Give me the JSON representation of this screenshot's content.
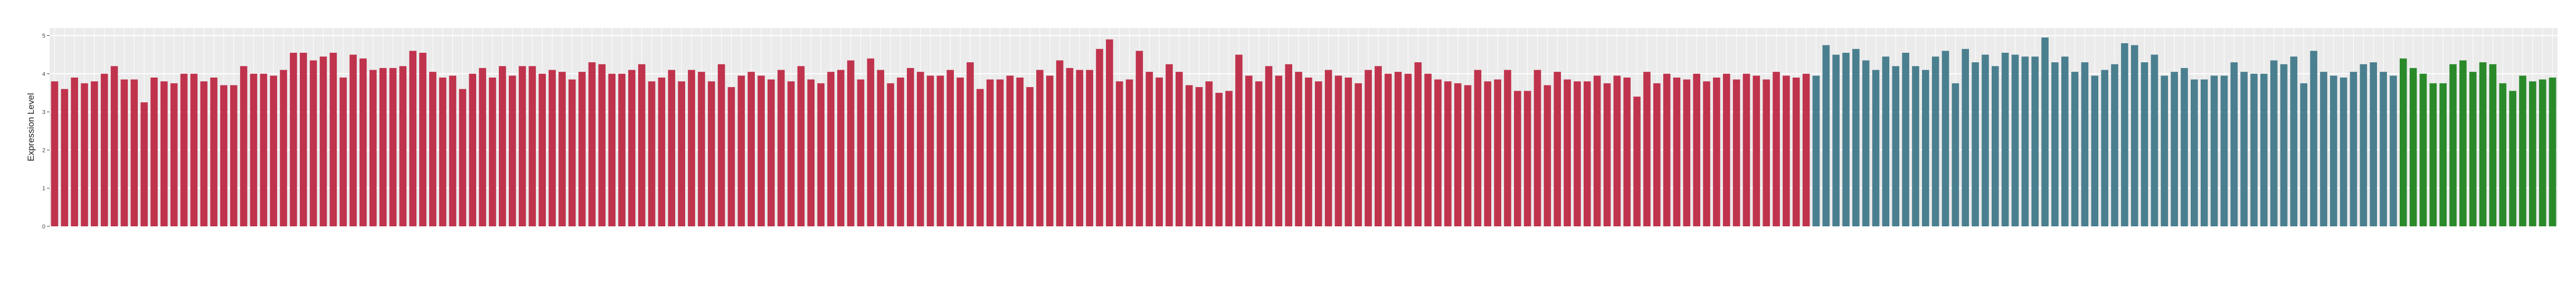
{
  "chart_data": {
    "type": "bar",
    "y_label": "Expression Level",
    "ylim": [
      0,
      5.2
    ],
    "yticks": [
      0,
      1,
      2,
      3,
      4,
      5
    ],
    "grid": true,
    "series": [
      {
        "color": "#c0334d",
        "values": [
          3.8,
          3.6,
          3.9,
          3.75,
          3.8,
          4.0,
          4.2,
          3.85,
          3.85,
          3.25,
          3.9,
          3.8,
          3.75,
          4.0,
          4.0,
          3.8,
          3.9,
          3.7,
          3.7,
          4.2,
          4.0,
          4.0,
          3.95,
          4.1,
          4.55,
          4.55,
          4.35,
          4.45,
          4.55,
          3.9,
          4.5,
          4.4,
          4.1,
          4.15,
          4.15,
          4.2,
          4.6,
          4.55,
          4.05,
          3.9,
          3.95,
          3.6,
          4.0,
          4.15,
          3.9,
          4.2,
          3.95,
          4.2,
          4.2,
          4.0,
          4.1,
          4.05,
          3.85,
          4.05,
          4.3,
          4.25,
          4.0,
          4.0,
          4.1,
          4.25,
          3.8,
          3.9,
          4.1,
          3.8,
          4.1,
          4.05,
          3.8,
          4.25,
          3.65,
          3.95,
          4.05,
          3.95,
          3.85,
          4.1,
          3.8,
          4.2,
          3.85,
          3.75,
          4.05,
          4.1,
          4.35,
          3.85,
          4.4,
          4.1,
          3.75,
          3.9,
          4.15,
          4.05,
          3.95,
          3.95,
          4.1,
          3.9,
          4.3,
          3.6,
          3.85,
          3.85,
          3.95,
          3.9,
          3.65,
          4.1,
          3.95,
          4.35,
          4.15,
          4.1,
          4.1,
          4.65,
          4.9,
          3.8,
          3.85,
          4.6,
          4.05,
          3.9,
          4.25,
          4.05,
          3.7,
          3.65,
          3.8,
          3.5,
          3.55,
          4.5,
          3.95,
          3.8,
          4.2,
          3.95,
          4.25,
          4.05,
          3.9,
          3.8,
          4.1,
          3.95,
          3.9,
          3.75,
          4.1,
          4.2,
          4.0,
          4.05,
          4.0,
          4.3,
          4.0,
          3.85,
          3.8,
          3.75,
          3.7,
          4.1,
          3.8,
          3.85,
          4.1,
          3.55,
          3.55,
          4.1,
          3.7,
          4.05,
          3.85,
          3.8,
          3.8,
          3.95,
          3.75,
          3.95,
          3.9,
          3.4,
          4.05,
          3.75,
          4.0,
          3.9,
          3.85,
          4.0,
          3.8,
          3.9,
          4.0,
          3.85,
          4.0,
          3.95,
          3.85,
          4.05,
          3.95,
          3.9,
          4.0
        ]
      },
      {
        "color": "#4a7f8f",
        "values": [
          3.95,
          4.75,
          4.5,
          4.55,
          4.65,
          4.35,
          4.1,
          4.45,
          4.2,
          4.55,
          4.2,
          4.1,
          4.45,
          4.6,
          3.75,
          4.65,
          4.3,
          4.5,
          4.2,
          4.55,
          4.5,
          4.45,
          4.45,
          4.95,
          4.3,
          4.45,
          4.05,
          4.3,
          3.95,
          4.1,
          4.25,
          4.8,
          4.75,
          4.3,
          4.5,
          3.95,
          4.05,
          4.15,
          3.85,
          3.85,
          3.95,
          3.95,
          4.3,
          4.05,
          4.0,
          4.0,
          4.35,
          4.25,
          4.45,
          3.75,
          4.6,
          4.05,
          3.95,
          3.9,
          4.05,
          4.25,
          4.3,
          4.05,
          3.95
        ]
      },
      {
        "color": "#2a8a2a",
        "values": [
          4.4,
          4.15,
          4.0,
          3.75,
          3.75,
          4.25,
          4.35,
          4.05,
          4.3,
          4.25,
          3.75,
          3.55,
          3.95,
          3.8,
          3.85,
          3.9
        ]
      }
    ]
  }
}
